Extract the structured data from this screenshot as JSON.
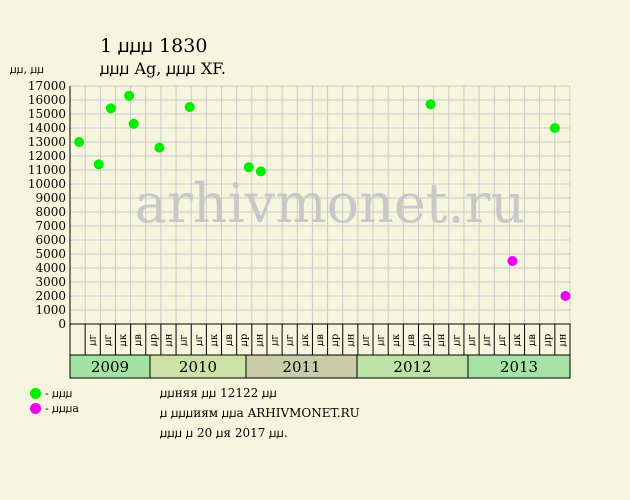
{
  "header": {
    "title": "1 ꙡꙡꙡ 1830",
    "subtitle": "ꙡꙡꙡ Ag, ꙡꙡꙡ XF.",
    "y_unit": "ꙡꙡ, ꙡꙡ"
  },
  "legend": [
    {
      "label": "- ꙡꙡꙡ",
      "color": "#00EE00"
    },
    {
      "label": "- ꙡꙡꙡа",
      "color": "#EE00EE"
    }
  ],
  "notes": [
    "ꙡꙡняя ꙡꙡ 12122 ꙡꙡ",
    "ꙡ ꙡꙡꙡиям ꙡꙡа ARHIVMONET.RU",
    "ꙡꙡꙡ ꙡ 20 ꙡя 2017 ꙡꙡ."
  ],
  "watermark": "arhivmonet.ru",
  "chart_data": {
    "type": "scatter",
    "ylim": [
      0,
      17000
    ],
    "y_ticks": [
      0,
      1000,
      2000,
      3000,
      4000,
      5000,
      6000,
      7000,
      8000,
      9000,
      10000,
      11000,
      12000,
      13000,
      14000,
      15000,
      16000,
      17000
    ],
    "x_slots": 33,
    "month_labels": [
      "ꙡг",
      "ꙡг",
      "ꙡк",
      "ꙡв",
      "ꙡр",
      "ꙡн",
      "ꙡг",
      "ꙡг",
      "ꙡк",
      "ꙡв",
      "ꙡр",
      "ꙡн",
      "ꙡг",
      "ꙡг",
      "ꙡк",
      "ꙡв",
      "ꙡр",
      "ꙡн",
      "ꙡг",
      "ꙡг",
      "ꙡк",
      "ꙡв",
      "ꙡр",
      "ꙡн",
      "ꙡг",
      "ꙡг"
    ],
    "years": [
      {
        "label": "2009",
        "color": "#A2E2A2"
      },
      {
        "label": "2010",
        "color": "#CDE2A6"
      },
      {
        "label": "2011",
        "color": "#C8CDA8"
      },
      {
        "label": "2012",
        "color": "#BCE2A6"
      },
      {
        "label": "2013",
        "color": "#A6E2A6"
      }
    ],
    "series": [
      {
        "color": "#00EE00",
        "points": [
          {
            "x": 0.6,
            "y": 13000
          },
          {
            "x": 1.9,
            "y": 11400
          },
          {
            "x": 2.7,
            "y": 15400
          },
          {
            "x": 3.9,
            "y": 16300
          },
          {
            "x": 4.2,
            "y": 14300
          },
          {
            "x": 5.9,
            "y": 12600
          },
          {
            "x": 7.9,
            "y": 15500
          },
          {
            "x": 11.8,
            "y": 11200
          },
          {
            "x": 12.6,
            "y": 10900
          },
          {
            "x": 23.8,
            "y": 15700
          },
          {
            "x": 32.0,
            "y": 14000
          }
        ]
      },
      {
        "color": "#EE00EE",
        "points": [
          {
            "x": 29.2,
            "y": 4500
          },
          {
            "x": 32.7,
            "y": 2000
          }
        ]
      }
    ]
  }
}
